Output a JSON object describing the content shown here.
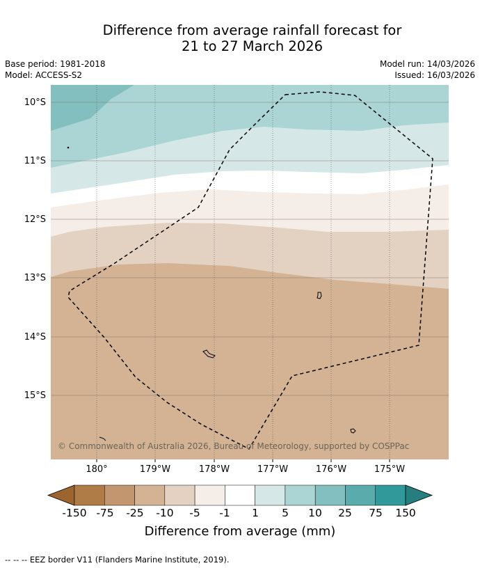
{
  "header": {
    "title_line1": "Difference from average rainfall forecast for",
    "title_line2": "21 to 27 March 2026",
    "base_period": "Base period: 1981-2018",
    "model": "Model: ACCESS-S2",
    "model_run": "Model run: 14/03/2026",
    "issued": "Issued: 16/03/2026"
  },
  "map": {
    "lat_labels": [
      "10°S",
      "11°S",
      "12°S",
      "13°S",
      "14°S",
      "15°S"
    ],
    "lon_labels": [
      "180°",
      "179°W",
      "178°W",
      "177°W",
      "176°W",
      "175°W"
    ],
    "copyright": "© Commonwealth of Australia 2026, Bureau of Meteorology, supported by COSPPac"
  },
  "colorbar": {
    "title": "Difference from average (mm)",
    "labels": [
      "-150",
      "-75",
      "-25",
      "-10",
      "-5",
      "-1",
      "1",
      "5",
      "10",
      "25",
      "75",
      "150"
    ],
    "colors": [
      "#9c6530",
      "#af7b47",
      "#c29770",
      "#d3b394",
      "#e3d2c1",
      "#f5ede7",
      "#ffffff",
      "#d5e8e7",
      "#abd4d4",
      "#83bfbf",
      "#5aabab",
      "#32999a",
      "#267e7e"
    ]
  },
  "footnote": "--  --  -- EEZ border V11 (Flanders Marine Institute, 2019)."
}
